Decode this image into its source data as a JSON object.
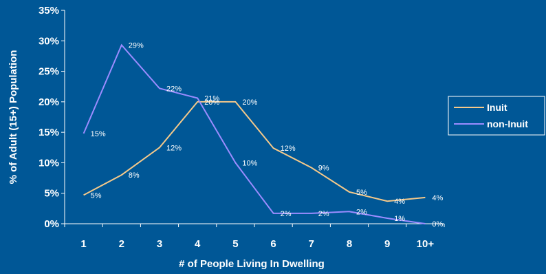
{
  "chart_data": {
    "type": "line",
    "xlabel": "# of People Living In Dwelling",
    "ylabel": "% of Adult (15+) Population",
    "categories": [
      "1",
      "2",
      "3",
      "4",
      "5",
      "6",
      "7",
      "8",
      "9",
      "10+"
    ],
    "ylim": [
      0,
      35
    ],
    "yticks": [
      "0%",
      "5%",
      "10%",
      "15%",
      "20%",
      "25%",
      "30%",
      "35%"
    ],
    "legend_position": "right",
    "grid": false,
    "series": [
      {
        "name": "Inuit",
        "color": "#f5c98a",
        "values": [
          4.7,
          8.0,
          12.5,
          20.0,
          20.0,
          12.4,
          9.2,
          5.2,
          3.7,
          4.3
        ],
        "labels": [
          "5%",
          "8%",
          "12%",
          "20%",
          "20%",
          "12%",
          "9%",
          "5%",
          "4%",
          "4%"
        ]
      },
      {
        "name": "non-Inuit",
        "color": "#9b8cff",
        "values": [
          14.8,
          29.3,
          22.2,
          20.6,
          10.0,
          1.7,
          1.7,
          2.0,
          0.9,
          0.0
        ],
        "labels": [
          "15%",
          "29%",
          "22%",
          "21%",
          "10%",
          "2%",
          "2%",
          "2%",
          "1%",
          "0%"
        ]
      }
    ]
  }
}
